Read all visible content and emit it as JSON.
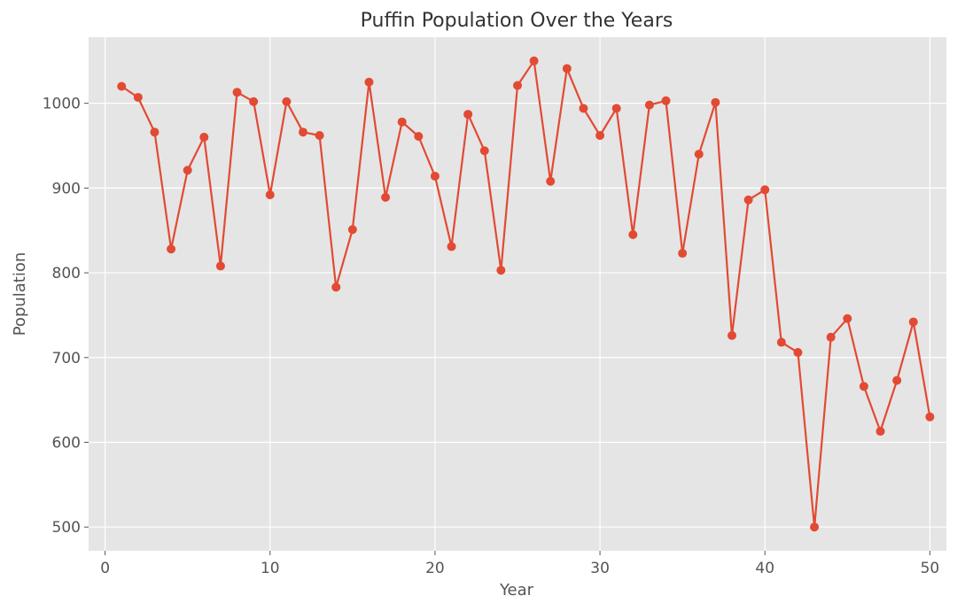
{
  "chart_data": {
    "type": "line",
    "title": "Puffin Population Over the Years",
    "xlabel": "Year",
    "ylabel": "Population",
    "xlim": [
      -1,
      51
    ],
    "ylim": [
      472,
      1078
    ],
    "xticks": [
      0,
      10,
      20,
      30,
      40,
      50
    ],
    "yticks": [
      500,
      600,
      700,
      800,
      900,
      1000
    ],
    "grid": true,
    "legend": "none",
    "series": [
      {
        "color": "#E24A33",
        "marker": "circle",
        "x": [
          1,
          2,
          3,
          4,
          5,
          6,
          7,
          8,
          9,
          10,
          11,
          12,
          13,
          14,
          15,
          16,
          17,
          18,
          19,
          20,
          21,
          22,
          23,
          24,
          25,
          26,
          27,
          28,
          29,
          30,
          31,
          32,
          33,
          34,
          35,
          36,
          37,
          38,
          39,
          40,
          41,
          42,
          43,
          44,
          45,
          46,
          47,
          48,
          49,
          50
        ],
        "y": [
          1020,
          1007,
          966,
          828,
          921,
          960,
          808,
          1013,
          1002,
          892,
          1002,
          966,
          962,
          783,
          851,
          1025,
          889,
          978,
          961,
          914,
          831,
          987,
          944,
          803,
          1021,
          1050,
          908,
          1041,
          994,
          962,
          994,
          845,
          998,
          1003,
          823,
          940,
          1001,
          726,
          886,
          898,
          718,
          706,
          500,
          724,
          746,
          666,
          613,
          673,
          742,
          630
        ]
      }
    ]
  }
}
